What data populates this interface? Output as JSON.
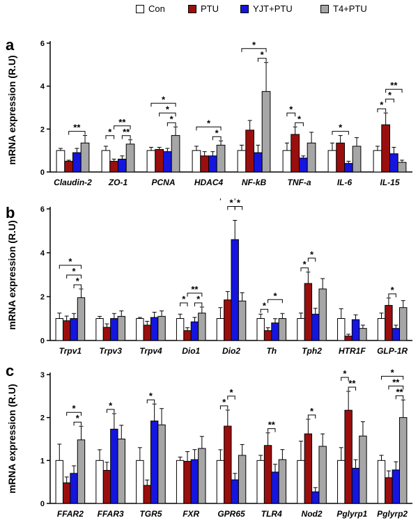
{
  "legend": [
    {
      "label": "Con",
      "color": "#ffffff"
    },
    {
      "label": "PTU",
      "color": "#9b0e0e"
    },
    {
      "label": "YJT+PTU",
      "color": "#1515e0"
    },
    {
      "label": "T4+PTU",
      "color": "#a6a6a6"
    }
  ],
  "chart_data": [
    {
      "type": "bar",
      "panel_label": "a",
      "ylabel": "mRNA expression (R.U)",
      "ylim": [
        0,
        6
      ],
      "yticks": [
        "0",
        "2",
        "4",
        "6"
      ],
      "categories": [
        "Claudin-2",
        "ZO-1",
        "PCNA",
        "HDAC4",
        "NF-kB",
        "TNF-a",
        "IL-6",
        "IL-15"
      ],
      "series": [
        {
          "name": "Con",
          "values": [
            1.0,
            1.0,
            1.0,
            1.0,
            1.0,
            1.0,
            1.0,
            1.0
          ],
          "errors": [
            0.1,
            0.2,
            0.15,
            0.2,
            0.25,
            0.35,
            0.35,
            0.2
          ]
        },
        {
          "name": "PTU",
          "values": [
            0.5,
            0.5,
            1.05,
            0.75,
            1.95,
            1.75,
            1.35,
            2.2
          ],
          "errors": [
            0.05,
            0.1,
            0.1,
            0.2,
            0.45,
            0.35,
            0.35,
            0.55
          ]
        },
        {
          "name": "YJT+PTU",
          "values": [
            0.9,
            0.6,
            0.95,
            0.75,
            0.9,
            0.65,
            0.4,
            0.85
          ],
          "errors": [
            0.2,
            0.15,
            0.15,
            0.2,
            0.35,
            0.1,
            0.1,
            0.3
          ]
        },
        {
          "name": "T4+PTU",
          "values": [
            1.35,
            1.3,
            1.7,
            1.25,
            3.75,
            1.35,
            1.2,
            0.45
          ],
          "errors": [
            0.35,
            0.2,
            0.4,
            0.2,
            1.35,
            0.5,
            0.4,
            0.1
          ]
        }
      ],
      "significance": [
        {
          "category": 0,
          "from": 1,
          "to": 3,
          "label": "**",
          "level": 0
        },
        {
          "category": 1,
          "from": 0,
          "to": 1,
          "label": "*",
          "level": 0
        },
        {
          "category": 1,
          "from": 1,
          "to": 3,
          "label": "**",
          "level": 1
        },
        {
          "category": 1,
          "from": 2,
          "to": 3,
          "label": "**",
          "level": 0
        },
        {
          "category": 2,
          "from": 0,
          "to": 3,
          "label": "*",
          "level": 2
        },
        {
          "category": 2,
          "from": 1,
          "to": 3,
          "label": "*",
          "level": 1
        },
        {
          "category": 2,
          "from": 2,
          "to": 3,
          "label": "*",
          "level": 0
        },
        {
          "category": 3,
          "from": 0,
          "to": 3,
          "label": "*",
          "level": 1
        },
        {
          "category": 3,
          "from": 2,
          "to": 3,
          "label": "*",
          "level": 0
        },
        {
          "category": 4,
          "from": 0,
          "to": 3,
          "label": "*",
          "level": 1
        },
        {
          "category": 4,
          "from": 2,
          "to": 3,
          "label": "*",
          "level": 0
        },
        {
          "category": 5,
          "from": 0,
          "to": 1,
          "label": "*",
          "level": 1
        },
        {
          "category": 5,
          "from": 1,
          "to": 2,
          "label": "*",
          "level": 0
        },
        {
          "category": 6,
          "from": 0,
          "to": 2,
          "label": "*",
          "level": 0
        },
        {
          "category": 7,
          "from": 0,
          "to": 1,
          "label": "*",
          "level": 0
        },
        {
          "category": 7,
          "from": 1,
          "to": 2,
          "label": "*",
          "level": 1
        },
        {
          "category": 7,
          "from": 1,
          "to": 3,
          "label": "**",
          "level": 2
        }
      ]
    },
    {
      "type": "bar",
      "panel_label": "b",
      "ylabel": "mRNA expression (R.U)",
      "ylim": [
        0,
        6
      ],
      "yticks": [
        "0",
        "2",
        "4",
        "6"
      ],
      "categories": [
        "Trpv1",
        "Trpv3",
        "Trpv4",
        "Dio1",
        "Dio2",
        "Th",
        "Tph2",
        "HTR1F",
        "GLP-1R"
      ],
      "series": [
        {
          "name": "Con",
          "values": [
            1.0,
            1.0,
            1.0,
            1.0,
            1.0,
            1.0,
            1.0,
            1.0,
            1.0
          ],
          "errors": [
            0.25,
            0.1,
            0.05,
            0.2,
            0.5,
            0.2,
            0.25,
            0.45,
            0.25
          ]
        },
        {
          "name": "PTU",
          "values": [
            0.9,
            0.6,
            0.7,
            0.45,
            1.85,
            0.45,
            2.6,
            0.2,
            1.6
          ]
        },
        {
          "name": "YJT+PTU",
          "values": [
            1.0,
            1.0,
            1.05,
            0.85,
            4.6,
            0.8,
            1.2,
            0.95,
            0.55
          ]
        },
        {
          "name": "T4+PTU",
          "values": [
            1.95,
            1.1,
            1.1,
            1.25,
            1.8,
            1.0,
            2.35,
            0.55,
            1.5
          ]
        }
      ],
      "significance": [
        {
          "category": 0,
          "from": 0,
          "to": 3,
          "label": "*",
          "level": 2
        },
        {
          "category": 0,
          "from": 1,
          "to": 3,
          "label": "*",
          "level": 1
        },
        {
          "category": 0,
          "from": 2,
          "to": 3,
          "label": "*",
          "level": 0
        },
        {
          "category": 3,
          "from": 0,
          "to": 1,
          "label": "*",
          "level": 0
        },
        {
          "category": 3,
          "from": 1,
          "to": 3,
          "label": "**",
          "level": 1
        },
        {
          "category": 3,
          "from": 2,
          "to": 3,
          "label": "*",
          "level": 0
        },
        {
          "category": 4,
          "from": 0,
          "to": 2,
          "label": "*",
          "level": 2
        },
        {
          "category": 4,
          "from": 1,
          "to": 2,
          "label": "*",
          "level": 1
        },
        {
          "category": 4,
          "from": 2,
          "to": 3,
          "label": "*",
          "level": 1
        },
        {
          "category": 5,
          "from": 0,
          "to": 1,
          "label": "*",
          "level": 0
        },
        {
          "category": 5,
          "from": 1,
          "to": 3,
          "label": "*",
          "level": 1
        },
        {
          "category": 6,
          "from": 0,
          "to": 1,
          "label": "*",
          "level": 0
        },
        {
          "category": 6,
          "from": 1,
          "to": 2,
          "label": "*",
          "level": 1
        },
        {
          "category": 8,
          "from": 1,
          "to": 2,
          "label": "*",
          "level": 0
        }
      ]
    },
    {
      "type": "bar",
      "panel_label": "c",
      "ylabel": "mRNA expression (R.U)",
      "ylim": [
        0,
        3
      ],
      "yticks": [
        "0",
        "1",
        "2",
        "3"
      ],
      "categories": [
        "FFAR2",
        "FFAR3",
        "TGR5",
        "FXR",
        "GPR65",
        "TLR4",
        "Nod2",
        "Pglyrp1",
        "Pglyrp2"
      ],
      "series": [
        {
          "name": "Con",
          "values": [
            1.0,
            1.0,
            1.0,
            1.0,
            1.0,
            1.0,
            1.0,
            1.0,
            1.0
          ],
          "errors": [
            0.38,
            0.25,
            0.3,
            0.08,
            0.25,
            0.12,
            0.45,
            0.3,
            0.12
          ]
        },
        {
          "name": "PTU",
          "values": [
            0.48,
            0.77,
            0.42,
            0.98,
            1.8,
            1.35,
            1.62,
            2.17,
            0.6
          ]
        },
        {
          "name": "YJT+PTU",
          "values": [
            0.7,
            1.73,
            1.92,
            1.02,
            0.55,
            0.73,
            0.27,
            0.82,
            0.78
          ]
        },
        {
          "name": "T4+PTU",
          "values": [
            1.48,
            1.5,
            1.83,
            1.28,
            1.12,
            1.02,
            1.33,
            1.57,
            2.0
          ]
        }
      ],
      "significance": [
        {
          "category": 0,
          "from": 1,
          "to": 3,
          "label": "*",
          "level": 1
        },
        {
          "category": 0,
          "from": 2,
          "to": 3,
          "label": "*",
          "level": 0
        },
        {
          "category": 1,
          "from": 1,
          "to": 2,
          "label": "*",
          "level": 0
        },
        {
          "category": 2,
          "from": 1,
          "to": 2,
          "label": "*",
          "level": 0
        },
        {
          "category": 4,
          "from": 0,
          "to": 1,
          "label": "*",
          "level": 0
        },
        {
          "category": 4,
          "from": 1,
          "to": 2,
          "label": "*",
          "level": 1
        },
        {
          "category": 5,
          "from": 1,
          "to": 2,
          "label": "**",
          "level": 0
        },
        {
          "category": 6,
          "from": 1,
          "to": 2,
          "label": "*",
          "level": 0
        },
        {
          "category": 7,
          "from": 0,
          "to": 1,
          "label": "*",
          "level": 1
        },
        {
          "category": 7,
          "from": 1,
          "to": 2,
          "label": "**",
          "level": 0
        },
        {
          "category": 8,
          "from": 0,
          "to": 3,
          "label": "*",
          "level": 2
        },
        {
          "category": 8,
          "from": 1,
          "to": 3,
          "label": "**",
          "level": 1
        },
        {
          "category": 8,
          "from": 2,
          "to": 3,
          "label": "**",
          "level": 0
        }
      ]
    }
  ]
}
